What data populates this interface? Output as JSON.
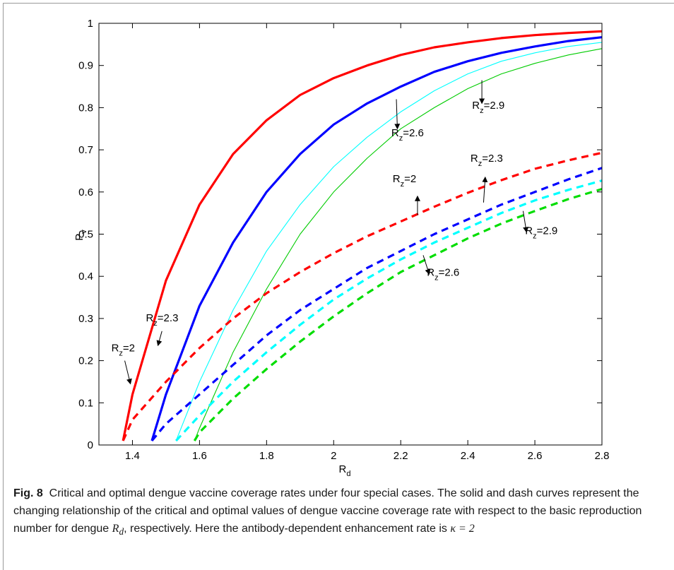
{
  "caption": {
    "label": "Fig. 8",
    "text": "Critical and optimal dengue vaccine coverage rates under four special cases. The solid and dash curves represent the changing relationship of the critical and optimal values of dengue vaccine coverage rate with respect to the basic reproduction number for dengue",
    "math_symbol": "R",
    "math_sub": "d",
    "text_after": ", respectively. Here the antibody-dependent enhancement rate is",
    "math_kappa": "κ = 2"
  },
  "chart_data": {
    "type": "line",
    "title": "",
    "xlabel": "R",
    "xlabel_sub": "d",
    "ylabel": "P",
    "ylabel_sub": "v",
    "xlim": [
      1.3,
      2.8
    ],
    "ylim": [
      0,
      1
    ],
    "grid": false,
    "legend": "none",
    "x_ticks": [
      "1.4",
      "1.6",
      "1.8",
      "2",
      "2.2",
      "2.4",
      "2.6",
      "2.8"
    ],
    "x_tick_values": [
      1.4,
      1.6,
      1.8,
      2.0,
      2.2,
      2.4,
      2.6,
      2.8
    ],
    "y_ticks": [
      "0",
      "0.1",
      "0.2",
      "0.3",
      "0.4",
      "0.5",
      "0.6",
      "0.7",
      "0.8",
      "0.9",
      "1"
    ],
    "y_tick_values": [
      0,
      0.1,
      0.2,
      0.3,
      0.4,
      0.5,
      0.6,
      0.7,
      0.8,
      0.9,
      1.0
    ],
    "series": [
      {
        "style": "solid",
        "color": "#ff0000",
        "weight": "thick",
        "x": [
          1.372,
          1.4,
          1.5,
          1.6,
          1.7,
          1.8,
          1.9,
          2.0,
          2.1,
          2.2,
          2.3,
          2.4,
          2.5,
          2.6,
          2.7,
          2.8
        ],
        "y": [
          0.01,
          0.12,
          0.39,
          0.57,
          0.69,
          0.77,
          0.83,
          0.87,
          0.9,
          0.925,
          0.943,
          0.955,
          0.965,
          0.972,
          0.977,
          0.981
        ]
      },
      {
        "style": "solid",
        "color": "#0000ff",
        "weight": "thick",
        "x": [
          1.458,
          1.5,
          1.6,
          1.7,
          1.8,
          1.9,
          2.0,
          2.1,
          2.2,
          2.3,
          2.4,
          2.5,
          2.6,
          2.7,
          2.8
        ],
        "y": [
          0.01,
          0.12,
          0.33,
          0.48,
          0.6,
          0.69,
          0.76,
          0.81,
          0.85,
          0.885,
          0.91,
          0.93,
          0.945,
          0.958,
          0.967
        ]
      },
      {
        "style": "solid",
        "color": "#00ffff",
        "weight": "thin",
        "x": [
          1.53,
          1.6,
          1.7,
          1.8,
          1.9,
          2.0,
          2.1,
          2.2,
          2.3,
          2.4,
          2.5,
          2.6,
          2.7,
          2.8
        ],
        "y": [
          0.01,
          0.15,
          0.32,
          0.46,
          0.57,
          0.66,
          0.73,
          0.79,
          0.84,
          0.88,
          0.91,
          0.93,
          0.945,
          0.955
        ]
      },
      {
        "style": "solid",
        "color": "#00cc00",
        "weight": "thin",
        "x": [
          1.585,
          1.6,
          1.7,
          1.8,
          1.9,
          2.0,
          2.1,
          2.2,
          2.3,
          2.4,
          2.5,
          2.6,
          2.7,
          2.8
        ],
        "y": [
          0.01,
          0.04,
          0.22,
          0.37,
          0.5,
          0.6,
          0.68,
          0.75,
          0.8,
          0.845,
          0.88,
          0.905,
          0.925,
          0.94
        ]
      },
      {
        "style": "dash",
        "color": "#ff0000",
        "weight": "thick",
        "x": [
          1.372,
          1.4,
          1.5,
          1.6,
          1.7,
          1.8,
          1.9,
          2.0,
          2.1,
          2.2,
          2.3,
          2.4,
          2.5,
          2.6,
          2.7,
          2.8
        ],
        "y": [
          0.01,
          0.06,
          0.15,
          0.23,
          0.3,
          0.36,
          0.41,
          0.455,
          0.495,
          0.53,
          0.565,
          0.598,
          0.628,
          0.655,
          0.675,
          0.693
        ]
      },
      {
        "style": "dash",
        "color": "#0000ff",
        "weight": "thick",
        "x": [
          1.458,
          1.5,
          1.6,
          1.7,
          1.8,
          1.9,
          2.0,
          2.1,
          2.2,
          2.3,
          2.4,
          2.5,
          2.6,
          2.7,
          2.8
        ],
        "y": [
          0.01,
          0.05,
          0.12,
          0.19,
          0.26,
          0.32,
          0.37,
          0.42,
          0.46,
          0.5,
          0.535,
          0.57,
          0.6,
          0.63,
          0.657
        ]
      },
      {
        "style": "dash",
        "color": "#00ffff",
        "weight": "thick",
        "x": [
          1.53,
          1.6,
          1.7,
          1.8,
          1.9,
          2.0,
          2.1,
          2.2,
          2.3,
          2.4,
          2.5,
          2.6,
          2.7,
          2.8
        ],
        "y": [
          0.01,
          0.07,
          0.15,
          0.22,
          0.285,
          0.345,
          0.395,
          0.44,
          0.48,
          0.515,
          0.55,
          0.58,
          0.605,
          0.627
        ]
      },
      {
        "style": "dash",
        "color": "#00dd00",
        "weight": "thick",
        "x": [
          1.585,
          1.6,
          1.7,
          1.8,
          1.9,
          2.0,
          2.1,
          2.2,
          2.3,
          2.4,
          2.5,
          2.6,
          2.7,
          2.8
        ],
        "y": [
          0.01,
          0.03,
          0.11,
          0.18,
          0.245,
          0.305,
          0.36,
          0.41,
          0.45,
          0.49,
          0.525,
          0.555,
          0.583,
          0.607
        ]
      }
    ],
    "annotations": [
      {
        "text": "R",
        "sub": "z",
        "value": "=2",
        "x": 1.337,
        "y": 0.222,
        "arrow_from": [
          1.377,
          0.2
        ],
        "arrow_to": [
          1.394,
          0.145
        ]
      },
      {
        "text": "R",
        "sub": "z",
        "value": "=2.3",
        "x": 1.44,
        "y": 0.293,
        "arrow_from": [
          1.488,
          0.27
        ],
        "arrow_to": [
          1.476,
          0.236
        ]
      },
      {
        "text": "R",
        "sub": "z",
        "value": "=2.6",
        "x": 2.172,
        "y": 0.732,
        "arrow_from": [
          2.187,
          0.82
        ],
        "arrow_to": [
          2.19,
          0.75
        ]
      },
      {
        "text": "R",
        "sub": "z",
        "value": "=2.9",
        "x": 2.413,
        "y": 0.797,
        "arrow_from": [
          2.442,
          0.865
        ],
        "arrow_to": [
          2.442,
          0.81
        ]
      },
      {
        "text": "R",
        "sub": "z",
        "value": "=2",
        "x": 2.176,
        "y": 0.623,
        "arrow_from": [
          2.25,
          0.545
        ],
        "arrow_to": [
          2.25,
          0.59
        ]
      },
      {
        "text": "R",
        "sub": "z",
        "value": "=2.3",
        "x": 2.408,
        "y": 0.672,
        "arrow_from": [
          2.447,
          0.575
        ],
        "arrow_to": [
          2.452,
          0.635
        ]
      },
      {
        "text": "R",
        "sub": "z",
        "value": "=2.9",
        "x": 2.571,
        "y": 0.5,
        "arrow_from": [
          2.565,
          0.555
        ],
        "arrow_to": [
          2.575,
          0.505
        ]
      },
      {
        "text": "R",
        "sub": "z",
        "value": "=2.6",
        "x": 2.278,
        "y": 0.401,
        "arrow_from": [
          2.267,
          0.45
        ],
        "arrow_to": [
          2.285,
          0.405
        ]
      }
    ]
  }
}
